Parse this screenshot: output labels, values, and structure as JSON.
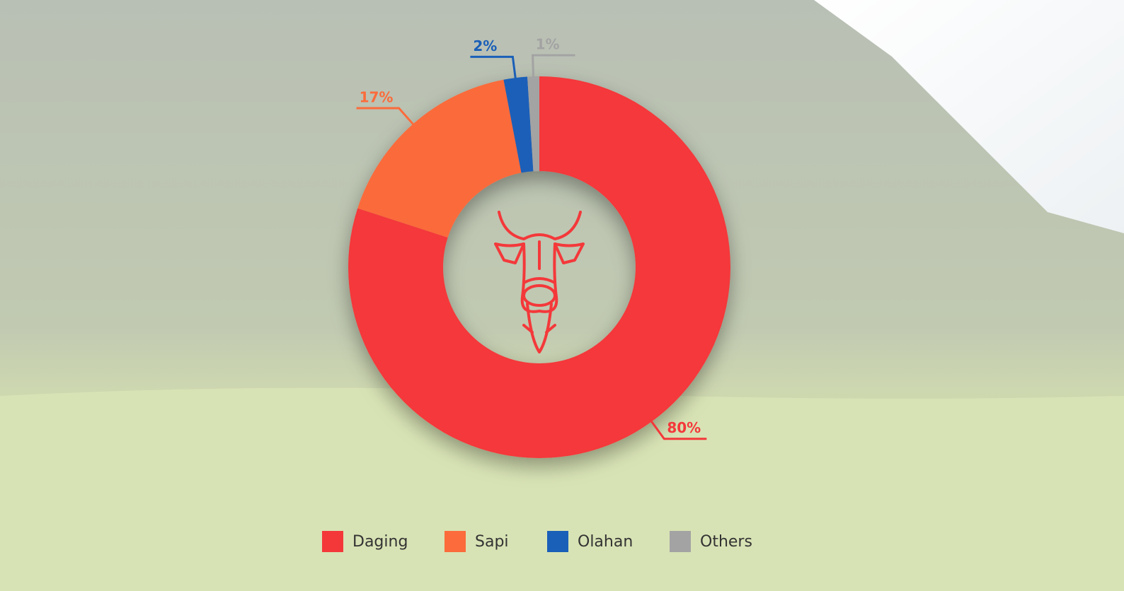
{
  "chart_data": {
    "type": "donut",
    "categories": [
      "Daging",
      "Sapi",
      "Olahan",
      "Others"
    ],
    "values": [
      80,
      17,
      2,
      1
    ],
    "value_labels": [
      "80%",
      "17%",
      "2%",
      "1%"
    ],
    "colors": [
      "#f4383a",
      "#fb6b3b",
      "#1a5fb8",
      "#a3a3a3"
    ],
    "legend": "bottom"
  }
}
